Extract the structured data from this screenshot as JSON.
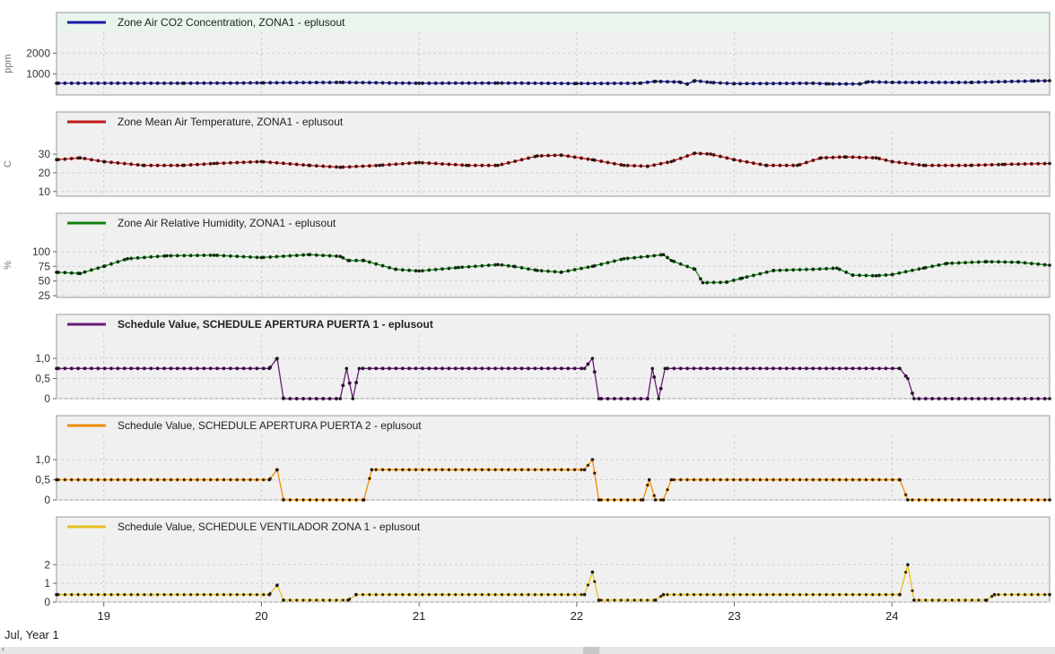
{
  "x_axis": {
    "ticks": [
      {
        "value": 19,
        "label": "19"
      },
      {
        "value": 20,
        "label": "20"
      },
      {
        "value": 21,
        "label": "21"
      },
      {
        "value": 22,
        "label": "22"
      },
      {
        "value": 23,
        "label": "23"
      },
      {
        "value": 24,
        "label": "24"
      }
    ],
    "caption": "Jul, Year 1"
  },
  "colors": {
    "plot_bg": "#f0f0f0",
    "panel_border": "#9a9a9a",
    "grid": "#cfcfcf",
    "legend_bg": "#e8f6ec"
  },
  "chart_data": [
    {
      "type": "line",
      "legend": "Zone Air CO2 Concentration, ZONA1 - eplusout",
      "ylabel": "ppm",
      "color": "#1a1aa8",
      "ylim": [
        0,
        3000
      ],
      "yticks": [
        {
          "value": 1000,
          "label": "1000"
        },
        {
          "value": 2000,
          "label": "2000"
        }
      ],
      "legend_fill": true,
      "points": [
        [
          18.7,
          560
        ],
        [
          19.5,
          560
        ],
        [
          20.0,
          580
        ],
        [
          20.5,
          600
        ],
        [
          21.0,
          560
        ],
        [
          21.5,
          570
        ],
        [
          22.0,
          550
        ],
        [
          22.4,
          560
        ],
        [
          22.5,
          650
        ],
        [
          22.65,
          620
        ],
        [
          22.7,
          520
        ],
        [
          22.75,
          680
        ],
        [
          22.85,
          600
        ],
        [
          23.0,
          540
        ],
        [
          23.5,
          560
        ],
        [
          23.6,
          530
        ],
        [
          23.8,
          530
        ],
        [
          23.85,
          630
        ],
        [
          24.0,
          600
        ],
        [
          24.5,
          600
        ],
        [
          24.9,
          670
        ],
        [
          25.0,
          680
        ]
      ]
    },
    {
      "type": "line",
      "legend": "Zone Mean Air Temperature, ZONA1 - eplusout",
      "ylabel": "C",
      "color": "#c01818",
      "ylim": [
        7.5,
        42
      ],
      "yticks": [
        {
          "value": 10,
          "label": "10"
        },
        {
          "value": 20,
          "label": "20"
        },
        {
          "value": 30,
          "label": "30"
        }
      ],
      "points": [
        [
          18.7,
          27
        ],
        [
          18.85,
          28
        ],
        [
          19.0,
          26
        ],
        [
          19.25,
          24
        ],
        [
          19.5,
          24
        ],
        [
          19.7,
          25
        ],
        [
          20.0,
          26
        ],
        [
          20.3,
          24
        ],
        [
          20.5,
          23
        ],
        [
          20.75,
          24
        ],
        [
          21.0,
          25.5
        ],
        [
          21.3,
          24
        ],
        [
          21.5,
          24
        ],
        [
          21.75,
          29
        ],
        [
          21.9,
          29.5
        ],
        [
          22.1,
          27
        ],
        [
          22.3,
          24
        ],
        [
          22.45,
          23.5
        ],
        [
          22.6,
          26
        ],
        [
          22.75,
          30.5
        ],
        [
          22.85,
          30
        ],
        [
          23.0,
          27
        ],
        [
          23.2,
          24
        ],
        [
          23.4,
          24
        ],
        [
          23.55,
          28
        ],
        [
          23.7,
          28.5
        ],
        [
          23.9,
          28
        ],
        [
          24.0,
          26
        ],
        [
          24.2,
          24
        ],
        [
          24.5,
          24
        ],
        [
          24.7,
          24.5
        ],
        [
          25.0,
          25
        ]
      ]
    },
    {
      "type": "line",
      "legend": "Zone Air Relative Humidity, ZONA1 - eplusout",
      "ylabel": "%",
      "color": "#128012",
      "ylim": [
        22,
        132
      ],
      "yticks": [
        {
          "value": 25,
          "label": "25"
        },
        {
          "value": 50,
          "label": "50"
        },
        {
          "value": 75,
          "label": "75"
        },
        {
          "value": 100,
          "label": "100"
        }
      ],
      "points": [
        [
          18.7,
          65
        ],
        [
          18.85,
          63
        ],
        [
          19.0,
          75
        ],
        [
          19.15,
          88
        ],
        [
          19.4,
          93
        ],
        [
          19.7,
          94
        ],
        [
          20.0,
          90
        ],
        [
          20.3,
          95
        ],
        [
          20.5,
          92
        ],
        [
          20.55,
          85
        ],
        [
          20.65,
          85
        ],
        [
          20.85,
          70
        ],
        [
          21.0,
          67
        ],
        [
          21.25,
          73
        ],
        [
          21.5,
          78
        ],
        [
          21.6,
          75
        ],
        [
          21.75,
          68
        ],
        [
          21.9,
          65
        ],
        [
          22.1,
          75
        ],
        [
          22.3,
          88
        ],
        [
          22.45,
          92
        ],
        [
          22.55,
          95
        ],
        [
          22.6,
          85
        ],
        [
          22.75,
          70
        ],
        [
          22.8,
          47
        ],
        [
          22.95,
          48
        ],
        [
          23.05,
          55
        ],
        [
          23.25,
          68
        ],
        [
          23.5,
          70
        ],
        [
          23.65,
          72
        ],
        [
          23.75,
          60
        ],
        [
          23.9,
          59
        ],
        [
          24.0,
          61
        ],
        [
          24.2,
          72
        ],
        [
          24.35,
          80
        ],
        [
          24.6,
          83
        ],
        [
          24.8,
          82
        ],
        [
          25.0,
          77
        ]
      ]
    },
    {
      "type": "line",
      "legend": "Schedule Value, SCHEDULE APERTURA PUERTA 1 - eplusout",
      "legend_bold": true,
      "color": "#6b1a7a",
      "ylim": [
        0,
        1.6
      ],
      "yticks": [
        {
          "value": 0,
          "label": "0"
        },
        {
          "value": 0.5,
          "label": "0,5"
        },
        {
          "value": 1.0,
          "label": "1,0"
        }
      ],
      "points": [
        [
          18.7,
          0.75
        ],
        [
          20.05,
          0.75
        ],
        [
          20.1,
          1.0
        ],
        [
          20.14,
          0
        ],
        [
          20.5,
          0
        ],
        [
          20.54,
          0.75
        ],
        [
          20.58,
          0
        ],
        [
          20.62,
          0.75
        ],
        [
          22.05,
          0.75
        ],
        [
          22.1,
          1.0
        ],
        [
          22.14,
          0
        ],
        [
          22.45,
          0
        ],
        [
          22.48,
          0.75
        ],
        [
          22.52,
          0
        ],
        [
          22.56,
          0.75
        ],
        [
          24.05,
          0.75
        ],
        [
          24.1,
          0.5
        ],
        [
          24.14,
          0
        ],
        [
          25.0,
          0
        ]
      ]
    },
    {
      "type": "line",
      "legend": "Schedule Value, SCHEDULE APERTURA PUERTA 2 - eplusout",
      "color": "#f08c00",
      "ylim": [
        0,
        1.6
      ],
      "yticks": [
        {
          "value": 0,
          "label": "0"
        },
        {
          "value": 0.5,
          "label": "0,5"
        },
        {
          "value": 1.0,
          "label": "1,0"
        }
      ],
      "points": [
        [
          18.7,
          0.5
        ],
        [
          20.05,
          0.5
        ],
        [
          20.1,
          0.75
        ],
        [
          20.14,
          0
        ],
        [
          20.65,
          0
        ],
        [
          20.7,
          0.75
        ],
        [
          22.05,
          0.75
        ],
        [
          22.1,
          1.0
        ],
        [
          22.14,
          0
        ],
        [
          22.42,
          0
        ],
        [
          22.46,
          0.5
        ],
        [
          22.5,
          0
        ],
        [
          22.55,
          0
        ],
        [
          22.6,
          0.5
        ],
        [
          24.05,
          0.5
        ],
        [
          24.1,
          0
        ],
        [
          25.0,
          0
        ]
      ]
    },
    {
      "type": "line",
      "legend": "Schedule Value, SCHEDULE VENTILADOR ZONA 1 - eplusout",
      "color": "#e8c020",
      "ylim": [
        0,
        3.5
      ],
      "yticks": [
        {
          "value": 0,
          "label": "0"
        },
        {
          "value": 1,
          "label": "1"
        },
        {
          "value": 2,
          "label": "2"
        }
      ],
      "points": [
        [
          18.7,
          0.4
        ],
        [
          20.05,
          0.4
        ],
        [
          20.1,
          0.9
        ],
        [
          20.14,
          0.1
        ],
        [
          20.55,
          0.1
        ],
        [
          20.6,
          0.4
        ],
        [
          22.05,
          0.4
        ],
        [
          22.1,
          1.6
        ],
        [
          22.14,
          0.1
        ],
        [
          22.5,
          0.1
        ],
        [
          22.55,
          0.4
        ],
        [
          24.05,
          0.4
        ],
        [
          24.1,
          2.0
        ],
        [
          24.14,
          0.1
        ],
        [
          24.6,
          0.1
        ],
        [
          24.65,
          0.4
        ],
        [
          25.0,
          0.4
        ]
      ]
    }
  ]
}
